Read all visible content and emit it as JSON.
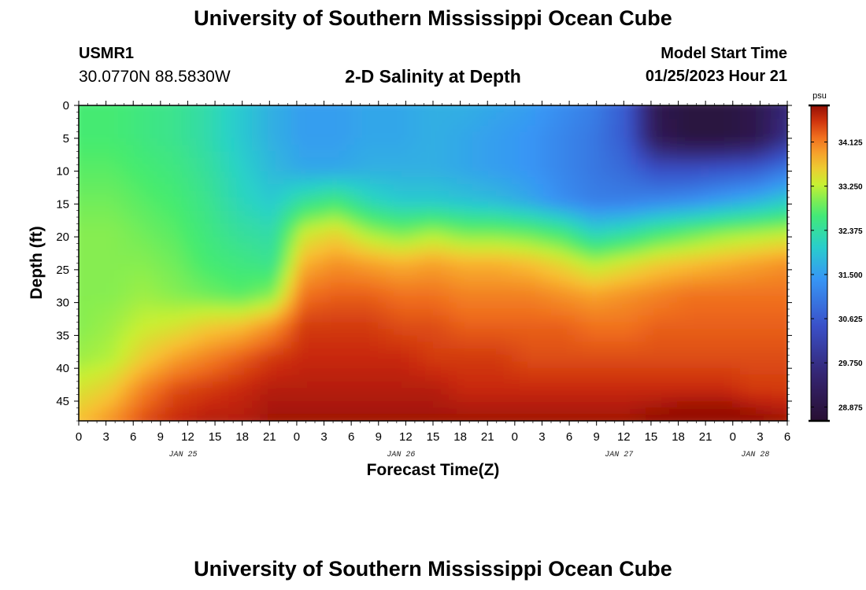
{
  "header": {
    "title": "University of Southern Mississippi Ocean Cube",
    "station_id": "USMR1",
    "coordinates": "30.0770N  88.5830W",
    "subtitle": "2-D Salinity at Depth",
    "model_start_label": "Model Start Time",
    "model_start_value": "01/25/2023 Hour 21"
  },
  "footer": {
    "title": "University of Southern Mississippi Ocean Cube"
  },
  "chart_data": {
    "type": "heatmap",
    "title": "2-D Salinity at Depth",
    "xlabel": "Forecast Time(Z)",
    "ylabel": "Depth (ft)",
    "x_ticks": [
      "0",
      "3",
      "6",
      "9",
      "12",
      "15",
      "18",
      "21",
      "0",
      "3",
      "6",
      "9",
      "12",
      "15",
      "18",
      "21",
      "0",
      "3",
      "6",
      "9",
      "12",
      "15",
      "18",
      "21",
      "0",
      "3",
      "6"
    ],
    "x_day_labels": [
      {
        "label": "JAN 25",
        "tick_index": 4
      },
      {
        "label": "JAN 26",
        "tick_index": 12
      },
      {
        "label": "JAN 27",
        "tick_index": 20
      },
      {
        "label": "JAN 28",
        "tick_index": 25
      }
    ],
    "y_ticks": [
      0,
      5,
      10,
      15,
      20,
      25,
      30,
      35,
      40,
      45
    ],
    "ylim": [
      0,
      48
    ],
    "xlim_hours": [
      0,
      78
    ],
    "colorbar": {
      "unit": "psu",
      "vmin": 28.6,
      "vmax": 34.85,
      "tick_values": [
        34.125,
        33.25,
        32.375,
        31.5,
        30.625,
        29.75,
        28.875
      ],
      "tick_labels": [
        "34.125",
        "33.250",
        "32.375",
        "31.500",
        "30.625",
        "29.750",
        "28.875"
      ]
    },
    "grid_z": [
      [
        32.7,
        32.7,
        32.6,
        32.5,
        32.3,
        32.0,
        31.7,
        31.5,
        31.5,
        31.6,
        31.6,
        31.7,
        31.7,
        31.6,
        31.5,
        31.3,
        31.1,
        30.6,
        29.0,
        28.8,
        28.8,
        29.0,
        29.6
      ],
      [
        32.7,
        32.7,
        32.6,
        32.5,
        32.3,
        32.0,
        31.7,
        31.5,
        31.5,
        31.6,
        31.6,
        31.7,
        31.6,
        31.5,
        31.4,
        31.2,
        31.0,
        30.6,
        29.1,
        28.8,
        28.8,
        29.0,
        29.8
      ],
      [
        32.8,
        32.8,
        32.7,
        32.6,
        32.4,
        32.1,
        31.8,
        31.6,
        31.6,
        31.7,
        31.7,
        31.7,
        31.6,
        31.5,
        31.4,
        31.2,
        31.0,
        30.8,
        30.4,
        30.4,
        30.5,
        30.6,
        31.0
      ],
      [
        32.9,
        32.9,
        32.8,
        32.7,
        32.5,
        32.2,
        32.0,
        32.4,
        32.6,
        32.2,
        32.0,
        32.0,
        31.9,
        31.8,
        31.6,
        31.3,
        31.1,
        31.1,
        31.2,
        31.3,
        31.5,
        31.7,
        32.0
      ],
      [
        33.0,
        33.0,
        32.9,
        32.8,
        32.6,
        32.4,
        32.3,
        33.3,
        33.5,
        33.1,
        32.9,
        33.1,
        32.9,
        32.9,
        32.8,
        32.6,
        32.1,
        32.3,
        32.6,
        32.8,
        33.0,
        33.1,
        33.2
      ],
      [
        33.0,
        33.0,
        33.0,
        32.9,
        32.7,
        32.6,
        32.5,
        33.8,
        34.0,
        33.9,
        33.8,
        33.9,
        33.8,
        33.8,
        33.7,
        33.5,
        33.2,
        33.4,
        33.6,
        33.7,
        33.8,
        33.9,
        34.0
      ],
      [
        33.0,
        33.0,
        33.1,
        33.0,
        32.9,
        32.8,
        33.0,
        34.2,
        34.3,
        34.3,
        34.2,
        34.2,
        34.1,
        34.1,
        34.1,
        34.0,
        33.9,
        34.0,
        34.1,
        34.2,
        34.2,
        34.2,
        34.2
      ],
      [
        33.0,
        33.1,
        33.3,
        33.4,
        33.6,
        33.7,
        34.0,
        34.5,
        34.5,
        34.5,
        34.4,
        34.4,
        34.3,
        34.3,
        34.3,
        34.3,
        34.2,
        34.2,
        34.3,
        34.3,
        34.3,
        34.3,
        34.3
      ],
      [
        33.1,
        33.2,
        33.6,
        33.9,
        34.1,
        34.3,
        34.5,
        34.6,
        34.6,
        34.6,
        34.6,
        34.5,
        34.5,
        34.5,
        34.4,
        34.4,
        34.4,
        34.4,
        34.4,
        34.4,
        34.4,
        34.4,
        34.4
      ],
      [
        33.4,
        33.6,
        34.1,
        34.4,
        34.5,
        34.6,
        34.7,
        34.7,
        34.7,
        34.7,
        34.7,
        34.7,
        34.6,
        34.6,
        34.6,
        34.6,
        34.6,
        34.6,
        34.6,
        34.6,
        34.6,
        34.5,
        34.5
      ],
      [
        33.7,
        34.0,
        34.4,
        34.6,
        34.7,
        34.7,
        34.8,
        34.8,
        34.8,
        34.8,
        34.8,
        34.8,
        34.8,
        34.8,
        34.8,
        34.8,
        34.8,
        34.8,
        34.9,
        35.0,
        35.0,
        34.9,
        34.8
      ]
    ]
  }
}
